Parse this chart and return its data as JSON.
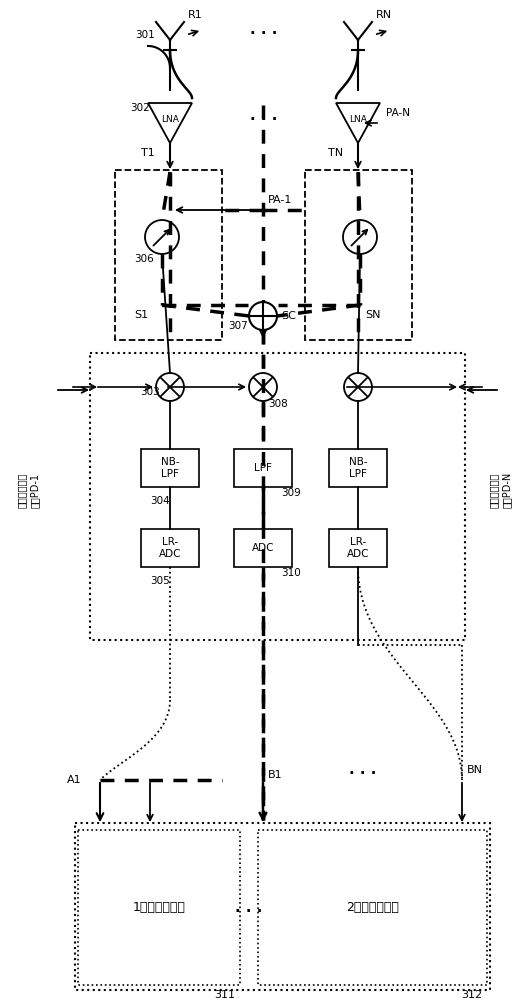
{
  "fig_width": 5.27,
  "fig_height": 10.0,
  "dpi": 100,
  "bg_color": "#ffffff",
  "lc": "#000000",
  "labels": {
    "R1": "R1",
    "RN": "RN",
    "301": "301",
    "302": "302",
    "303": "303",
    "304": "304",
    "305": "305",
    "306": "306",
    "307": "307",
    "308": "308",
    "309": "309",
    "310": "310",
    "311": "311",
    "312": "312",
    "PA1": "PA-1",
    "PAN": "PA-N",
    "SC": "SC",
    "S1": "S1",
    "SN": "SN",
    "T1": "T1",
    "TN": "TN",
    "A1": "A1",
    "B1": "B1",
    "BN": "BN",
    "LNA": "LNA",
    "NBLPF": "NB-\nLPF",
    "LPF": "LPF",
    "LRADC": "LR-\nADC",
    "ADC": "ADC",
    "proc1": "1路数字波束器",
    "proc2": "2路数字波束器",
    "pd1": "数字波束成形\n路径PD-1",
    "pdn": "数字波束成形\n路径PD-N"
  }
}
